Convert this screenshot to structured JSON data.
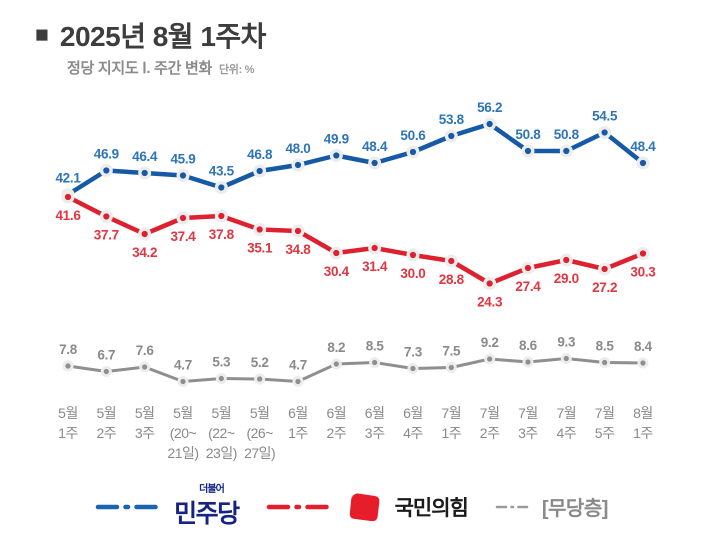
{
  "title": {
    "bullet": "■",
    "text": "2025년 8월 1주차"
  },
  "subtitle": {
    "text": "정당 지지도 Ⅰ. 주간 변화",
    "unit": "단위: %"
  },
  "chart_data": {
    "type": "line",
    "title": "정당 지지도 Ⅰ. 주간 변화",
    "unit": "%",
    "ylim": [
      0,
      60
    ],
    "grid": false,
    "legend_position": "bottom",
    "categories": [
      [
        "5월",
        "1주"
      ],
      [
        "5월",
        "2주"
      ],
      [
        "5월",
        "3주"
      ],
      [
        "5월",
        "(20~",
        "21일)"
      ],
      [
        "5월",
        "(22~",
        "23일)"
      ],
      [
        "5월",
        "(26~",
        "27일)"
      ],
      [
        "6월",
        "1주"
      ],
      [
        "6월",
        "2주"
      ],
      [
        "6월",
        "3주"
      ],
      [
        "6월",
        "4주"
      ],
      [
        "7월",
        "1주"
      ],
      [
        "7월",
        "2주"
      ],
      [
        "7월",
        "3주"
      ],
      [
        "7월",
        "4주"
      ],
      [
        "7월",
        "5주"
      ],
      [
        "8월",
        "1주"
      ]
    ],
    "series": [
      {
        "id": "minjoo",
        "name": "민주당",
        "color": "#1659a6",
        "label_color": "#2e74b8",
        "labels": "above",
        "line_width": 4.5,
        "values": [
          42.1,
          46.9,
          46.4,
          45.9,
          43.5,
          46.8,
          48.0,
          49.9,
          48.4,
          50.6,
          53.8,
          56.2,
          50.8,
          50.8,
          54.5,
          48.4
        ]
      },
      {
        "id": "ppp",
        "name": "국민의힘",
        "color": "#df202e",
        "label_color": "#e23540",
        "labels": "below",
        "line_width": 4.5,
        "values": [
          41.6,
          37.7,
          34.2,
          37.4,
          37.8,
          35.1,
          34.8,
          30.4,
          31.4,
          30.0,
          28.8,
          24.3,
          27.4,
          29.0,
          27.2,
          30.3
        ]
      },
      {
        "id": "independent",
        "name": "무당층",
        "color": "#8f8f8f",
        "label_color": "#8a8a8a",
        "labels": "above",
        "line_width": 3,
        "values": [
          7.8,
          6.7,
          7.6,
          4.7,
          5.3,
          5.2,
          4.7,
          8.2,
          8.5,
          7.3,
          7.5,
          9.2,
          8.6,
          9.3,
          8.5,
          8.4
        ]
      }
    ]
  },
  "legend": {
    "items": [
      {
        "name": "민주당",
        "marker_color": "#1a64b2",
        "logo_top": "더불어",
        "logo_text": "민주당",
        "text_color": "#152484"
      },
      {
        "name": "국민의힘",
        "marker_color": "#e61e2b",
        "logo_text": "국민의힘",
        "text_color": "#1b1b1b",
        "symbol_color": "#e61e2b"
      },
      {
        "name": "무당층",
        "marker_color": "#9a9a9a",
        "logo_text": "[무당층]",
        "text_color": "#8a8a8a"
      }
    ]
  }
}
